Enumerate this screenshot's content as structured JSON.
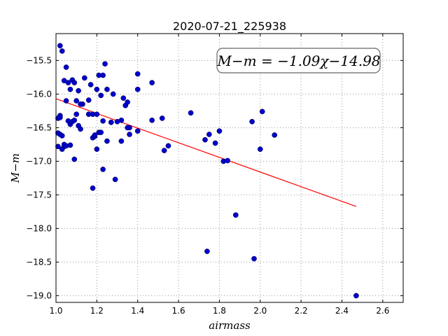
{
  "chart_data": {
    "type": "scatter",
    "title": "2020-07-21_225938",
    "xlabel": "airmass",
    "ylabel": "M−m",
    "xlim": [
      1.0,
      2.7
    ],
    "ylim": [
      -19.1,
      -15.1
    ],
    "xticks": [
      "1.0",
      "1.2",
      "1.4",
      "1.6",
      "1.8",
      "2.0",
      "2.2",
      "2.4",
      "2.6"
    ],
    "yticks": [
      "−15.5",
      "−16.0",
      "−16.5",
      "−17.0",
      "−17.5",
      "−18.0",
      "−18.5",
      "−19.0"
    ],
    "grid": true,
    "annotation": "M−m = −1.09χ−14.98",
    "fit": {
      "slope": -1.09,
      "intercept": -14.98,
      "x_range": [
        1.0,
        2.47
      ],
      "color": "#ff0000"
    },
    "marker_color": "#0000cc",
    "x": [
      1.02,
      1.03,
      1.05,
      1.04,
      1.06,
      1.07,
      1.08,
      1.09,
      1.1,
      1.11,
      1.13,
      1.14,
      1.16,
      1.17,
      1.18,
      1.2,
      1.21,
      1.22,
      1.23,
      1.24,
      1.25,
      1.27,
      1.28,
      1.33,
      1.34,
      1.35,
      1.36,
      1.4,
      1.4,
      1.47,
      1.01,
      1.02,
      1.02,
      1.02,
      1.03,
      1.04,
      1.05,
      1.06,
      1.07,
      1.08,
      1.09,
      1.1,
      1.11,
      1.12,
      1.12,
      1.16,
      1.18,
      1.19,
      1.2,
      1.2,
      1.21,
      1.22,
      1.23,
      1.25,
      1.27,
      1.3,
      1.32,
      1.35,
      1.36,
      1.4,
      1.47,
      1.53,
      1.55,
      1.52,
      1.66,
      1.01,
      1.01,
      1.03,
      1.04,
      1.05,
      1.07,
      1.09,
      1.18,
      1.19,
      1.23,
      1.29,
      1.32,
      1.73,
      1.75,
      1.78,
      1.8,
      1.82,
      1.84,
      1.88,
      1.74,
      1.96,
      1.97,
      2.0,
      2.01,
      2.07,
      2.47
    ],
    "y": [
      -15.28,
      -15.36,
      -15.6,
      -15.8,
      -15.83,
      -15.93,
      -15.79,
      -15.83,
      -16.1,
      -15.95,
      -16.15,
      -15.76,
      -16.09,
      -15.86,
      -16.3,
      -15.93,
      -15.72,
      -16.02,
      -15.72,
      -15.55,
      -15.93,
      -16.42,
      -16.0,
      -16.06,
      -16.17,
      -16.12,
      -16.5,
      -15.7,
      -15.93,
      -15.83,
      -16.36,
      -16.32,
      -16.35,
      -16.6,
      -16.62,
      -16.78,
      -16.1,
      -16.4,
      -16.45,
      -16.41,
      -16.39,
      -16.3,
      -16.47,
      -16.52,
      -16.15,
      -16.3,
      -16.65,
      -16.63,
      -16.3,
      -16.82,
      -16.57,
      -16.57,
      -16.4,
      -16.7,
      -16.42,
      -16.41,
      -16.7,
      -16.5,
      -16.6,
      -16.55,
      -16.39,
      -16.84,
      -16.77,
      -16.36,
      -16.28,
      -16.58,
      -16.78,
      -16.82,
      -16.75,
      -16.77,
      -16.76,
      -16.97,
      -17.4,
      -16.61,
      -17.12,
      -17.27,
      -16.39,
      -16.68,
      -16.6,
      -16.73,
      -16.55,
      -17.0,
      -16.99,
      -17.8,
      -18.34,
      -16.41,
      -18.45,
      -16.82,
      -16.26,
      -16.61,
      -19.0
    ]
  }
}
